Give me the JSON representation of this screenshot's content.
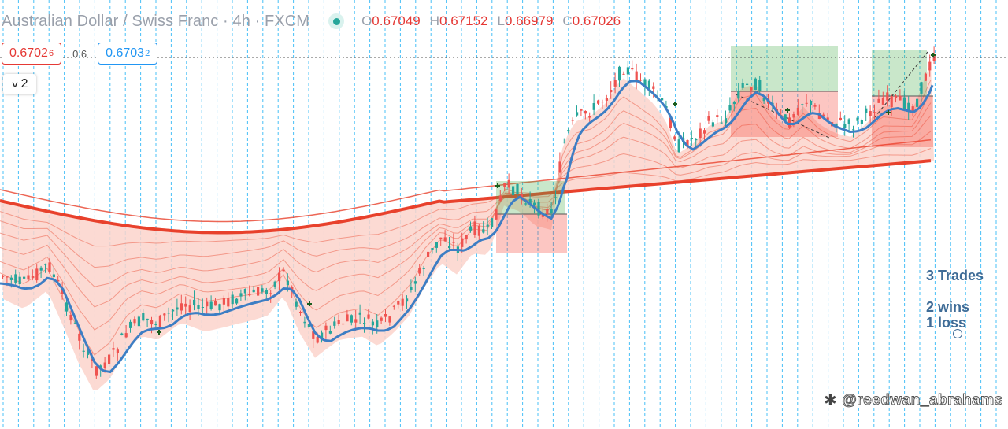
{
  "header": {
    "symbol_title": "Australian Dollar / Swiss Franc · 4h · FXCM",
    "ohlc": [
      {
        "key": "O",
        "value": "0.67049"
      },
      {
        "key": "H",
        "value": "0.67152"
      },
      {
        "key": "L",
        "value": "0.66979"
      },
      {
        "key": "C",
        "value": "0.67026"
      }
    ],
    "status_icon": "live-dot"
  },
  "trading": {
    "sell_price": "0.6702",
    "sell_price_sup": "6",
    "spread": "0.6",
    "buy_price": "0.6703",
    "buy_price_sup": "2"
  },
  "indicator_toggle": {
    "count": "2",
    "icon": "chevron-down"
  },
  "stats": {
    "trades": "3 Trades",
    "wins": "2 wins",
    "losses": "1 loss"
  },
  "watermark": {
    "handle": "@reedwan_abrahams",
    "icon": "brand-logo"
  },
  "colors": {
    "up": "#26a69a",
    "down": "#ef5350",
    "fast_ma": "#3d7ec4",
    "slow_ma": "#e8412c",
    "ribbon_fill": "#fcd3cb",
    "vline": "#29b6f6"
  },
  "chart_data": {
    "type": "candlestick",
    "symbol": "AUDCHF",
    "timeframe": "4h",
    "last_price": 0.67026,
    "trades": [
      {
        "result": "win"
      },
      {
        "result": "loss"
      },
      {
        "result": "win"
      }
    ],
    "candle_count": 218
  }
}
